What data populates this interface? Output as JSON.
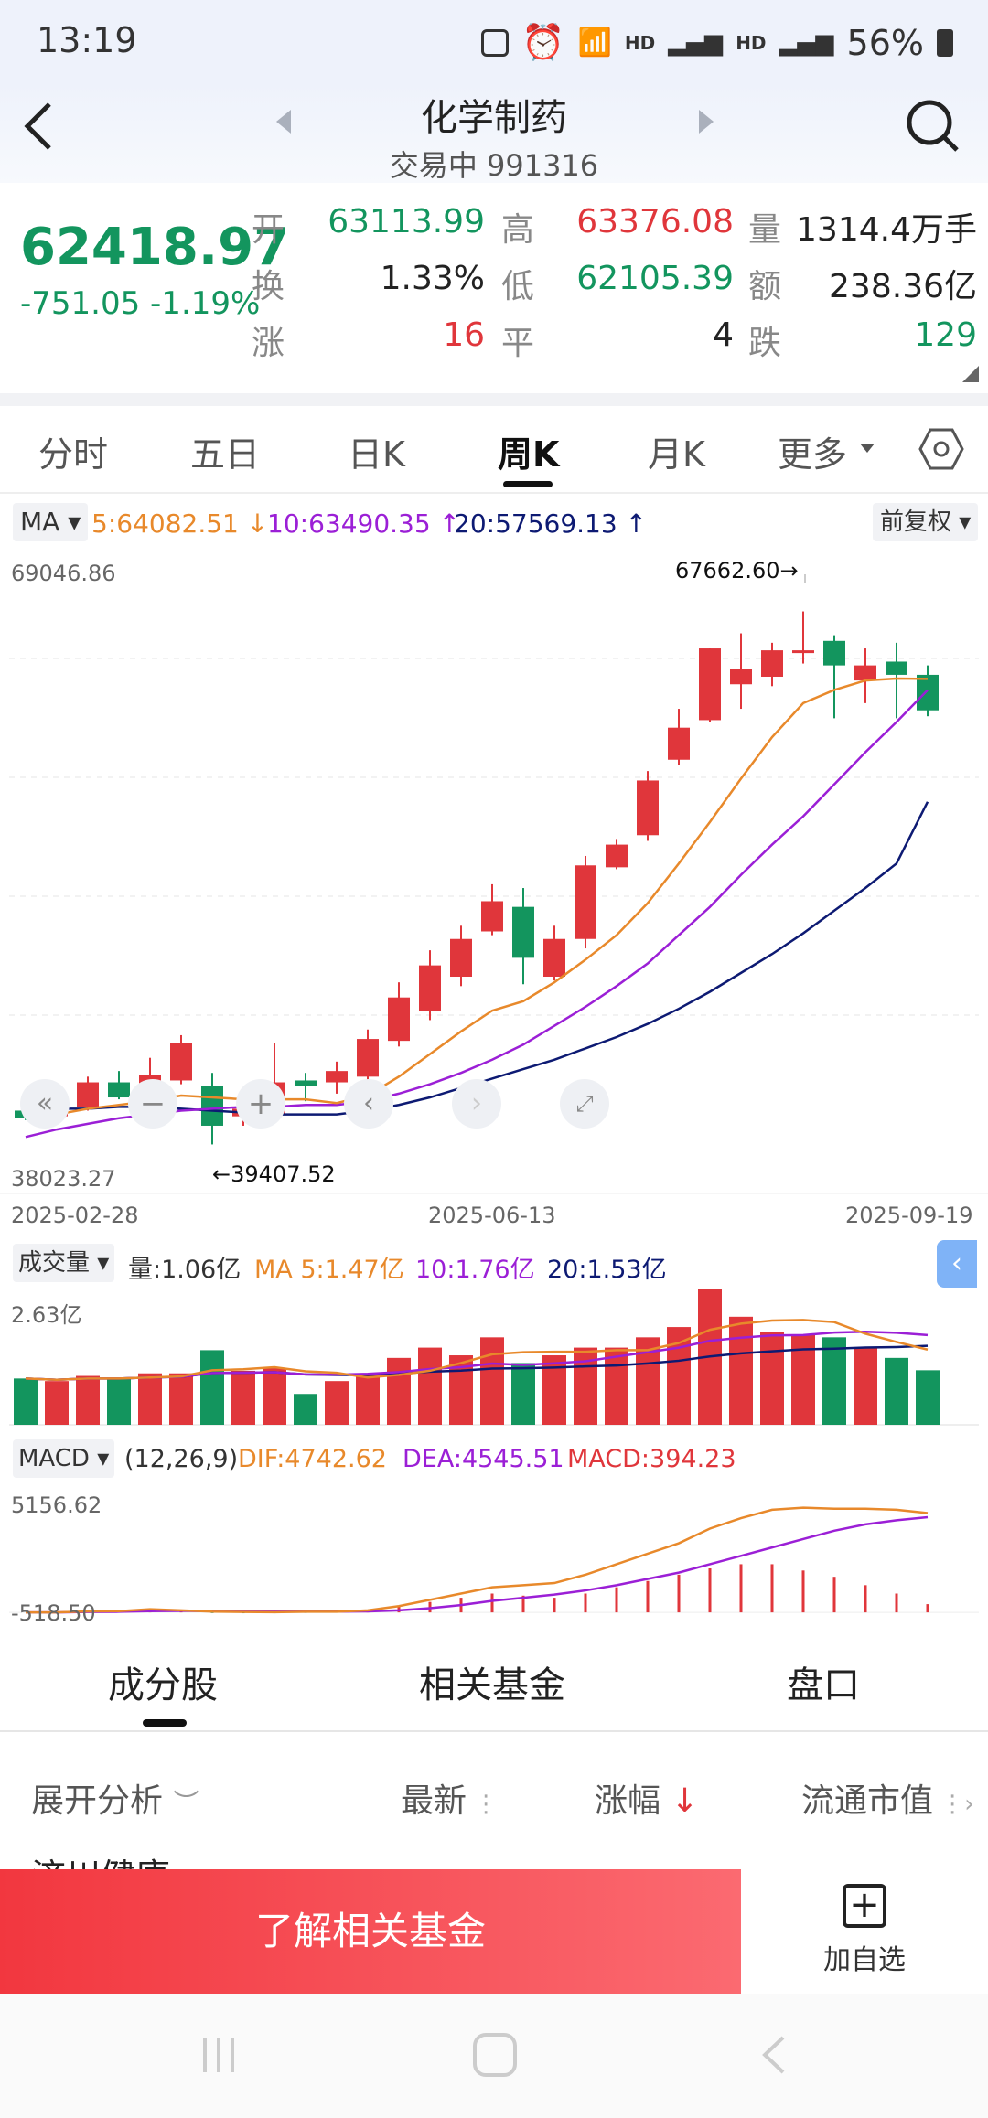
{
  "status": {
    "time": "13:19",
    "battery": "56%",
    "net1": "HD",
    "net2": "HD"
  },
  "header": {
    "title": "化学制药",
    "subtitle": "交易中 991316"
  },
  "quote": {
    "price": "62418.97",
    "change": "-751.05 -1.19%",
    "open_label": "开",
    "open": "63113.99",
    "high_label": "高",
    "high": "63376.08",
    "vol_label": "量",
    "vol": "1314.4万手",
    "turnover_label": "换",
    "turnover": "1.33%",
    "low_label": "低",
    "low": "62105.39",
    "amount_label": "额",
    "amount": "238.36亿",
    "up_label": "涨",
    "up": "16",
    "flat_label": "平",
    "flat": "4",
    "down_label": "跌",
    "down": "129"
  },
  "tabs": [
    "分时",
    "五日",
    "日K",
    "周K",
    "月K",
    "更多"
  ],
  "active_tab": 3,
  "ma_bar": {
    "select": "MA",
    "ma5": "5:64082.51",
    "ma10": "10:63490.35",
    "ma20": "20:57569.13",
    "adjust": "前复权"
  },
  "price_axis": {
    "top": "69046.86",
    "bottom": "38023.27",
    "max_label": "67662.60→",
    "min_label": "←39407.52"
  },
  "dates": [
    "2025-02-28",
    "2025-06-13",
    "2025-09-19"
  ],
  "volume_bar": {
    "select": "成交量",
    "vol": "量:1.06亿",
    "ma5": "MA 5:1.47亿",
    "ma10": "10:1.76亿",
    "ma20": "20:1.53亿",
    "axis_top": "2.63亿"
  },
  "macd_bar": {
    "select": "MACD",
    "params": "(12,26,9)",
    "dif": "DIF:4742.62",
    "dea": "DEA:4545.51",
    "macd": "MACD:394.23",
    "axis_top": "5156.62",
    "axis_bottom": "-518.50"
  },
  "bottom_tabs": [
    "成分股",
    "相关基金",
    "盘口"
  ],
  "list_header": {
    "expand": "展开分析",
    "latest": "最新",
    "change": "涨幅",
    "cap": "流通市值"
  },
  "peek_text": "济川健康",
  "cta": {
    "button": "了解相关基金",
    "watch": "加自选"
  },
  "colors": {
    "up": "#e0363b",
    "down": "#13955e",
    "ma5": "#e8892b",
    "ma10": "#9b1fd6",
    "ma20": "#0d1a73"
  },
  "chart_data": {
    "type": "candlestick",
    "dates": [
      "2025-02-28",
      "2025-06-13",
      "2025-09-19"
    ],
    "ylim": [
      38023.27,
      69046.86
    ],
    "candles": [
      {
        "o": 41200,
        "h": 41700,
        "l": 40700,
        "c": 40800
      },
      {
        "o": 40900,
        "h": 41500,
        "l": 40500,
        "c": 41300
      },
      {
        "o": 41400,
        "h": 43000,
        "l": 41200,
        "c": 42700
      },
      {
        "o": 42700,
        "h": 43300,
        "l": 41800,
        "c": 41900
      },
      {
        "o": 42000,
        "h": 44000,
        "l": 41700,
        "c": 43100
      },
      {
        "o": 42800,
        "h": 45200,
        "l": 42600,
        "c": 44800
      },
      {
        "o": 42500,
        "h": 43200,
        "l": 39407.52,
        "c": 40400
      },
      {
        "o": 40900,
        "h": 41600,
        "l": 40400,
        "c": 41300
      },
      {
        "o": 41000,
        "h": 44800,
        "l": 40900,
        "c": 42700
      },
      {
        "o": 42800,
        "h": 43200,
        "l": 41700,
        "c": 42500
      },
      {
        "o": 42700,
        "h": 43800,
        "l": 42100,
        "c": 43300
      },
      {
        "o": 43000,
        "h": 45500,
        "l": 42700,
        "c": 45000
      },
      {
        "o": 44900,
        "h": 48000,
        "l": 44600,
        "c": 47200
      },
      {
        "o": 46500,
        "h": 49700,
        "l": 46000,
        "c": 48900
      },
      {
        "o": 48300,
        "h": 51000,
        "l": 47800,
        "c": 50300
      },
      {
        "o": 50700,
        "h": 53200,
        "l": 50500,
        "c": 52300
      },
      {
        "o": 52000,
        "h": 53000,
        "l": 47900,
        "c": 49300
      },
      {
        "o": 48300,
        "h": 51000,
        "l": 48100,
        "c": 50300
      },
      {
        "o": 50300,
        "h": 54700,
        "l": 49800,
        "c": 54200
      },
      {
        "o": 54100,
        "h": 55600,
        "l": 54000,
        "c": 55300
      },
      {
        "o": 55800,
        "h": 59200,
        "l": 55500,
        "c": 58700
      },
      {
        "o": 59800,
        "h": 62500,
        "l": 59500,
        "c": 61500
      },
      {
        "o": 61900,
        "h": 65700,
        "l": 61800,
        "c": 65700
      },
      {
        "o": 63800,
        "h": 66500,
        "l": 62500,
        "c": 64600
      },
      {
        "o": 64200,
        "h": 66000,
        "l": 63700,
        "c": 65600
      },
      {
        "o": 65500,
        "h": 67662.6,
        "l": 64900,
        "c": 65600
      },
      {
        "o": 66100,
        "h": 66400,
        "l": 62000,
        "c": 64800
      },
      {
        "o": 64000,
        "h": 65700,
        "l": 62800,
        "c": 64800
      },
      {
        "o": 65000,
        "h": 66000,
        "l": 62000,
        "c": 64300
      },
      {
        "o": 64300,
        "h": 64800,
        "l": 62105.39,
        "c": 62418.97
      }
    ],
    "ma5": [
      41000,
      41000,
      41300,
      41500,
      41700,
      42000,
      41900,
      41800,
      41800,
      41800,
      41600,
      42000,
      43000,
      44200,
      45400,
      46500,
      47000,
      48000,
      49200,
      50500,
      52200,
      54300,
      56500,
      58800,
      61000,
      62800,
      63500,
      64000,
      64100,
      64082.51
    ],
    "ma10": [
      39800,
      40200,
      40500,
      40800,
      41000,
      41200,
      41300,
      41400,
      41400,
      41500,
      41500,
      41700,
      42100,
      42600,
      43200,
      43900,
      44700,
      45700,
      46700,
      47800,
      49000,
      50500,
      52000,
      53700,
      55300,
      56800,
      58500,
      60200,
      61800,
      63490.35
    ],
    "ma20": [
      41200,
      41300,
      41300,
      41400,
      41400,
      41300,
      41200,
      41100,
      41000,
      41000,
      41000,
      41200,
      41500,
      41900,
      42400,
      42900,
      43400,
      43900,
      44500,
      45100,
      45800,
      46600,
      47500,
      48500,
      49500,
      50600,
      51800,
      53000,
      54300,
      57569.13
    ],
    "volume_ylim": [
      0,
      2.63
    ],
    "volume": [
      0.9,
      0.85,
      0.95,
      0.9,
      1.0,
      1.0,
      1.45,
      1.05,
      1.1,
      0.6,
      0.85,
      1.0,
      1.3,
      1.5,
      1.35,
      1.7,
      1.2,
      1.35,
      1.5,
      1.5,
      1.7,
      1.9,
      2.63,
      2.1,
      1.8,
      1.75,
      1.7,
      1.5,
      1.3,
      1.06
    ],
    "macd_ylim": [
      -518.5,
      5156.62
    ],
    "dif": [
      0,
      0,
      50,
      60,
      150,
      100,
      40,
      20,
      10,
      30,
      30,
      100,
      300,
      600,
      900,
      1200,
      1300,
      1400,
      1800,
      2300,
      2800,
      3300,
      4000,
      4500,
      4900,
      5000,
      4950,
      4950,
      4900,
      4742.62
    ],
    "dea": [
      0,
      0,
      20,
      30,
      60,
      70,
      60,
      50,
      40,
      40,
      40,
      50,
      100,
      200,
      350,
      550,
      700,
      850,
      1050,
      1300,
      1600,
      1900,
      2300,
      2700,
      3100,
      3500,
      3900,
      4200,
      4400,
      4545.51
    ],
    "macd": [
      0,
      0,
      20,
      30,
      60,
      50,
      -30,
      -40,
      -40,
      -20,
      -10,
      60,
      300,
      500,
      700,
      900,
      800,
      700,
      900,
      1200,
      1500,
      1800,
      2100,
      2300,
      2300,
      2000,
      1700,
      1300,
      900,
      394.23
    ]
  }
}
